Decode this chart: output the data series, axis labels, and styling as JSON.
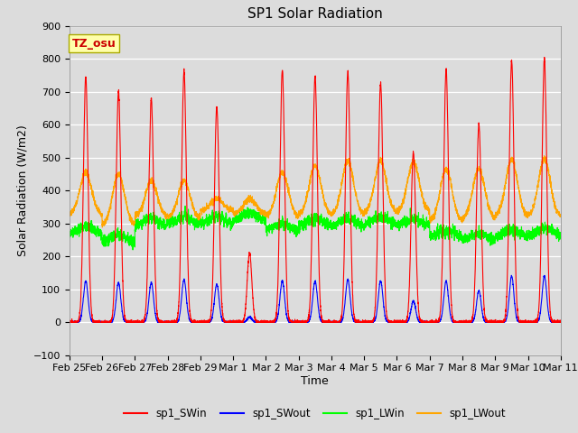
{
  "title": "SP1 Solar Radiation",
  "xlabel": "Time",
  "ylabel": "Solar Radiation (W/m2)",
  "ylim": [
    -100,
    900
  ],
  "bg_color": "#dcdcdc",
  "plot_bg_color": "#dcdcdc",
  "colors": {
    "sp1_SWin": "#ff0000",
    "sp1_SWout": "#0000ff",
    "sp1_LWin": "#00ff00",
    "sp1_LWout": "#ffa500"
  },
  "annotation_text": "TZ_osu",
  "annotation_bg": "#ffffaa",
  "annotation_border": "#aaaa00",
  "tick_dates": [
    "Feb 25",
    "Feb 26",
    "Feb 27",
    "Feb 28",
    "Feb 29",
    "Mar 1",
    "Mar 2",
    "Mar 3",
    "Mar 4",
    "Mar 5",
    "Mar 6",
    "Mar 7",
    "Mar 8",
    "Mar 9",
    "Mar 10",
    "Mar 11"
  ],
  "SWin_peaks": [
    745,
    700,
    680,
    760,
    655,
    210,
    765,
    748,
    760,
    725,
    515,
    770,
    600,
    795,
    800
  ],
  "SWout_peaks": [
    125,
    120,
    120,
    130,
    115,
    15,
    125,
    125,
    130,
    125,
    65,
    125,
    95,
    140,
    140
  ],
  "lwin_base": [
    265,
    240,
    290,
    295,
    295,
    305,
    275,
    290,
    290,
    295,
    290,
    255,
    245,
    255,
    260
  ],
  "lwout_night": [
    325,
    295,
    320,
    315,
    340,
    330,
    320,
    325,
    325,
    330,
    335,
    305,
    315,
    320,
    320
  ],
  "lwout_day_peak": [
    455,
    450,
    430,
    430,
    375,
    375,
    455,
    475,
    490,
    490,
    485,
    465,
    465,
    495,
    495
  ]
}
